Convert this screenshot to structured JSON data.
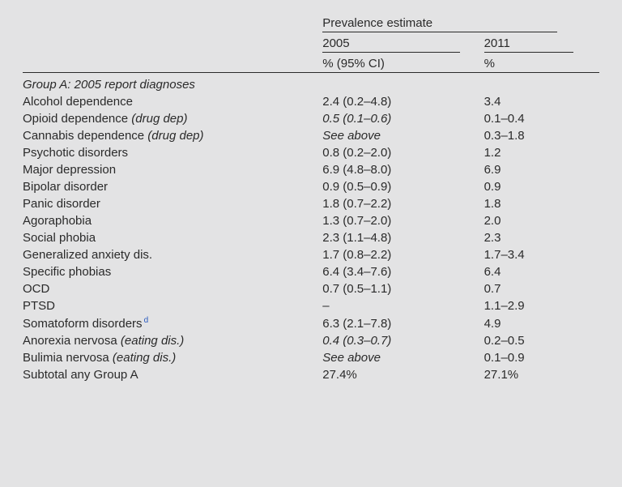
{
  "header": {
    "prevalence_label": "Prevalence estimate",
    "year_2005": "2005",
    "year_2011": "2011",
    "ci_2005": "% (95% CI)",
    "ci_2011": "%"
  },
  "section_title": "Group A: 2005 report diagnoses",
  "rows": [
    {
      "label": "Alcohol dependence",
      "label_italic": false,
      "suffix": "",
      "v2005": "2.4 (0.2–4.8)",
      "v2005_italic": false,
      "v2011": "3.4"
    },
    {
      "label": "Opioid dependence ",
      "label_italic": false,
      "suffix": "(drug dep)",
      "v2005": "0.5 (0.1–0.6)",
      "v2005_italic": true,
      "v2011": "0.1–0.4"
    },
    {
      "label": "Cannabis dependence ",
      "label_italic": false,
      "suffix": "(drug dep)",
      "v2005": "See above",
      "v2005_italic": true,
      "v2011": "0.3–1.8"
    },
    {
      "label": "Psychotic disorders",
      "label_italic": false,
      "suffix": "",
      "v2005": "0.8 (0.2–2.0)",
      "v2005_italic": false,
      "v2011": "1.2"
    },
    {
      "label": "Major depression",
      "label_italic": false,
      "suffix": "",
      "v2005": "6.9 (4.8–8.0)",
      "v2005_italic": false,
      "v2011": "6.9"
    },
    {
      "label": "Bipolar disorder",
      "label_italic": false,
      "suffix": "",
      "v2005": "0.9 (0.5–0.9)",
      "v2005_italic": false,
      "v2011": "0.9"
    },
    {
      "label": "Panic disorder",
      "label_italic": false,
      "suffix": "",
      "v2005": "1.8 (0.7–2.2)",
      "v2005_italic": false,
      "v2011": "1.8"
    },
    {
      "label": "Agoraphobia",
      "label_italic": false,
      "suffix": "",
      "v2005": "1.3 (0.7–2.0)",
      "v2005_italic": false,
      "v2011": "2.0"
    },
    {
      "label": "Social phobia",
      "label_italic": false,
      "suffix": "",
      "v2005": "2.3 (1.1–4.8)",
      "v2005_italic": false,
      "v2011": "2.3"
    },
    {
      "label": "Generalized anxiety dis.",
      "label_italic": false,
      "suffix": "",
      "v2005": "1.7 (0.8–2.2)",
      "v2005_italic": false,
      "v2011": "1.7–3.4"
    },
    {
      "label": "Specific phobias",
      "label_italic": false,
      "suffix": "",
      "v2005": "6.4 (3.4–7.6)",
      "v2005_italic": false,
      "v2011": "6.4"
    },
    {
      "label": "OCD",
      "label_italic": false,
      "suffix": "",
      "v2005": "0.7 (0.5–1.1)",
      "v2005_italic": false,
      "v2011": "0.7"
    },
    {
      "label": "PTSD",
      "label_italic": false,
      "suffix": "",
      "v2005": "–",
      "v2005_italic": false,
      "v2011": "1.1–2.9"
    },
    {
      "label": "Somatoform disorders",
      "label_italic": false,
      "suffix": "",
      "note": "d",
      "v2005": "6.3 (2.1–7.8)",
      "v2005_italic": false,
      "v2011": "4.9"
    },
    {
      "label": "Anorexia nervosa ",
      "label_italic": false,
      "suffix": "(eating dis.)",
      "v2005": "0.4 (0.3–0.7)",
      "v2005_italic": true,
      "v2011": "0.2–0.5"
    },
    {
      "label": "Bulimia nervosa ",
      "label_italic": false,
      "suffix": "(eating dis.)",
      "v2005": "See above",
      "v2005_italic": true,
      "v2011": "0.1–0.9"
    },
    {
      "label": "Subtotal any Group A",
      "label_italic": false,
      "suffix": "",
      "v2005": "27.4%",
      "v2005_italic": false,
      "v2011": "27.1%"
    }
  ]
}
